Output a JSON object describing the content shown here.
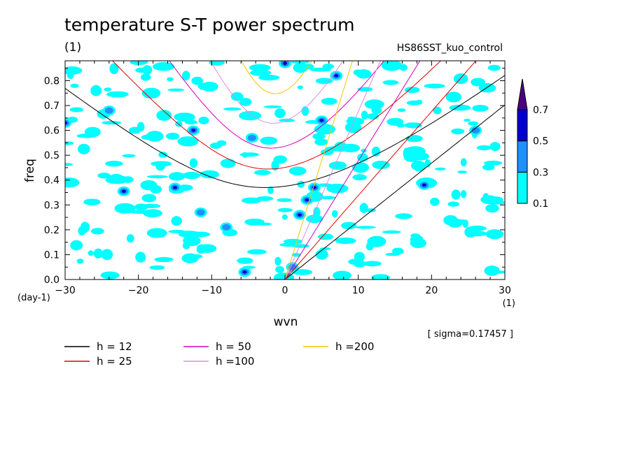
{
  "chart_data": {
    "type": "heatmap",
    "title": "temperature S-T power spectrum",
    "subtitle": "(1)",
    "run_label": "HS86SST_kuo_control",
    "xlabel": "wvn",
    "x_unit": "(1)",
    "ylabel": "freq",
    "y_unit": "(day-1)",
    "xlim": [
      -30,
      30
    ],
    "ylim": [
      0,
      0.88
    ],
    "x_ticks": [
      -30,
      -20,
      -10,
      0,
      10,
      20,
      30
    ],
    "x_tick_labels": [
      "−30",
      "−20",
      "−10",
      "0",
      "10",
      "20",
      "30"
    ],
    "y_ticks": [
      0,
      0.1,
      0.2,
      0.3,
      0.4,
      0.5,
      0.6,
      0.7,
      0.8
    ],
    "y_tick_labels": [
      "0.0",
      "0.1",
      "0.2",
      "0.3",
      "0.4",
      "0.5",
      "0.6",
      "0.7",
      "0.8"
    ],
    "sigma_label": "[ sigma=0.17457 ]",
    "colorbar": {
      "levels": [
        0.1,
        0.3,
        0.5,
        0.7
      ],
      "level_labels": [
        "0.1",
        "0.3",
        "0.5",
        "0.7"
      ],
      "colors": [
        "#00ffff",
        "#1e90ff",
        "#0000cd",
        "#4b0082"
      ]
    },
    "dispersion_curves": [
      {
        "label": "h = 12",
        "h": 12,
        "color": "#000000"
      },
      {
        "label": "h = 25",
        "h": 25,
        "color": "#e00000"
      },
      {
        "label": "h = 50",
        "h": 50,
        "color": "#d000c0"
      },
      {
        "label": "h =100",
        "h": 100,
        "color": "#d890e0"
      },
      {
        "label": "h =200",
        "h": 200,
        "color": "#f0c800"
      }
    ],
    "highlights": [
      {
        "k": -22,
        "f": 0.355,
        "level": 0.5
      },
      {
        "k": -15,
        "f": 0.37,
        "level": 0.5
      },
      {
        "k": -30,
        "f": 0.63,
        "level": 0.5
      },
      {
        "k": -12.5,
        "f": 0.6,
        "level": 0.5
      },
      {
        "k": -11.5,
        "f": 0.27,
        "level": 0.3
      },
      {
        "k": -5.5,
        "f": 0.03,
        "level": 0.5
      },
      {
        "k": -4.5,
        "f": 0.57,
        "level": 0.3
      },
      {
        "k": 0,
        "f": 0.87,
        "level": 0.5
      },
      {
        "k": 2,
        "f": 0.26,
        "level": 0.5
      },
      {
        "k": 3,
        "f": 0.32,
        "level": 0.5
      },
      {
        "k": 4,
        "f": 0.37,
        "level": 0.5
      },
      {
        "k": 5,
        "f": 0.64,
        "level": 0.5
      },
      {
        "k": 7,
        "f": 0.82,
        "level": 0.5
      },
      {
        "k": 19,
        "f": 0.38,
        "level": 0.5
      },
      {
        "k": -24,
        "f": 0.68,
        "level": 0.3
      },
      {
        "k": 26,
        "f": 0.6,
        "level": 0.3
      },
      {
        "k": 1,
        "f": 0.05,
        "level": 0.3
      },
      {
        "k": -8,
        "f": 0.21,
        "level": 0.3
      }
    ]
  }
}
